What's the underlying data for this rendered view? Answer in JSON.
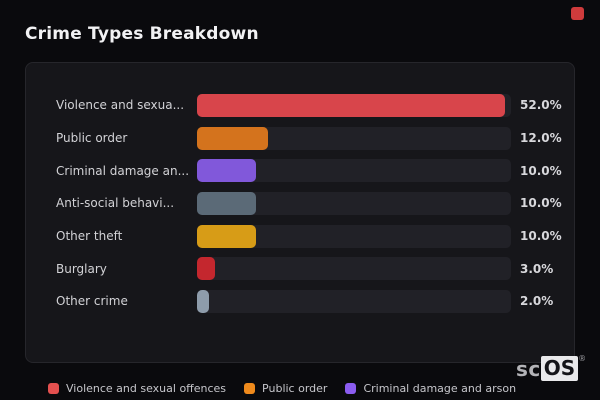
{
  "title": "Crime Types Breakdown",
  "colors": {
    "page_bg": "#0a0a0d",
    "card_bg": "#16161a",
    "card_border": "#26262b",
    "track": "#212127",
    "red_indicator": "#cf3b3c"
  },
  "chart_data": {
    "type": "bar",
    "orientation": "horizontal",
    "title": "Crime Types Breakdown",
    "categories": [
      "Violence and sexua...",
      "Public order",
      "Criminal damage an...",
      "Anti-social behavi...",
      "Other theft",
      "Burglary",
      "Other crime"
    ],
    "values": [
      52.0,
      12.0,
      10.0,
      10.0,
      10.0,
      3.0,
      2.0
    ],
    "value_labels": [
      "52.0%",
      "12.0%",
      "10.0%",
      "10.0%",
      "10.0%",
      "3.0%",
      "2.0%"
    ],
    "bar_colors": [
      "#d8454b",
      "#d4731d",
      "#8158da",
      "#5b6a77",
      "#d79c17",
      "#c4272e",
      "#8e9cab"
    ],
    "xlabel": "",
    "ylabel": "",
    "xlim": [
      0,
      52
    ],
    "grid": false,
    "legend_position": "bottom"
  },
  "rows": [
    {
      "label": "Violence and sexua...",
      "value": 52.0,
      "value_label": "52.0%",
      "color": "#d8454b"
    },
    {
      "label": "Public order",
      "value": 12.0,
      "value_label": "12.0%",
      "color": "#d4731d"
    },
    {
      "label": "Criminal damage an...",
      "value": 10.0,
      "value_label": "10.0%",
      "color": "#8158da"
    },
    {
      "label": "Anti-social behavi...",
      "value": 10.0,
      "value_label": "10.0%",
      "color": "#5b6a77"
    },
    {
      "label": "Other theft",
      "value": 10.0,
      "value_label": "10.0%",
      "color": "#d79c17"
    },
    {
      "label": "Burglary",
      "value": 3.0,
      "value_label": "3.0%",
      "color": "#c4272e"
    },
    {
      "label": "Other crime",
      "value": 2.0,
      "value_label": "2.0%",
      "color": "#8e9cab"
    }
  ],
  "legend": [
    {
      "label": "Violence and sexual offences",
      "color": "#e4504f"
    },
    {
      "label": "Public order",
      "color": "#ef8a1c"
    },
    {
      "label": "Criminal damage and arson",
      "color": "#8b5cf0"
    }
  ],
  "logo": {
    "prefix": "sc",
    "suffix": "OS",
    "reg": "®"
  }
}
